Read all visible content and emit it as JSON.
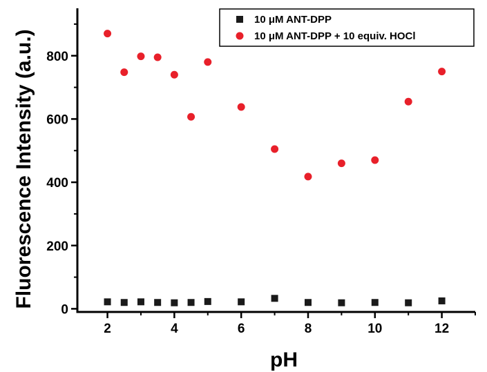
{
  "chart_data": {
    "type": "scatter",
    "xlabel": "pH",
    "ylabel": "Fluorescence Intensity (a.u.)",
    "xlim": [
      1.1,
      13.0
    ],
    "ylim": [
      -10,
      950
    ],
    "x_ticks": [
      2,
      4,
      6,
      8,
      10,
      12
    ],
    "y_ticks": [
      0,
      200,
      400,
      600,
      800
    ],
    "grid": false,
    "legend_position": "top-right",
    "series": [
      {
        "name": "10 μM ANT-DPP",
        "marker": "square",
        "color": "#1a1a1a",
        "x": [
          2,
          2.5,
          3,
          3.5,
          4,
          4.5,
          5,
          6,
          7,
          8,
          9,
          10,
          11,
          12
        ],
        "y": [
          22,
          20,
          22,
          20,
          19,
          20,
          23,
          22,
          33,
          20,
          19,
          20,
          19,
          25
        ]
      },
      {
        "name": "10 μM ANT-DPP + 10 equiv. HOCl",
        "marker": "circle",
        "color": "#e8202a",
        "x": [
          2,
          2.5,
          3,
          3.5,
          4,
          4.5,
          5,
          6,
          7,
          8,
          9,
          10,
          11,
          12
        ],
        "y": [
          870,
          748,
          798,
          795,
          740,
          607,
          780,
          638,
          505,
          418,
          460,
          470,
          655,
          750
        ]
      }
    ]
  }
}
